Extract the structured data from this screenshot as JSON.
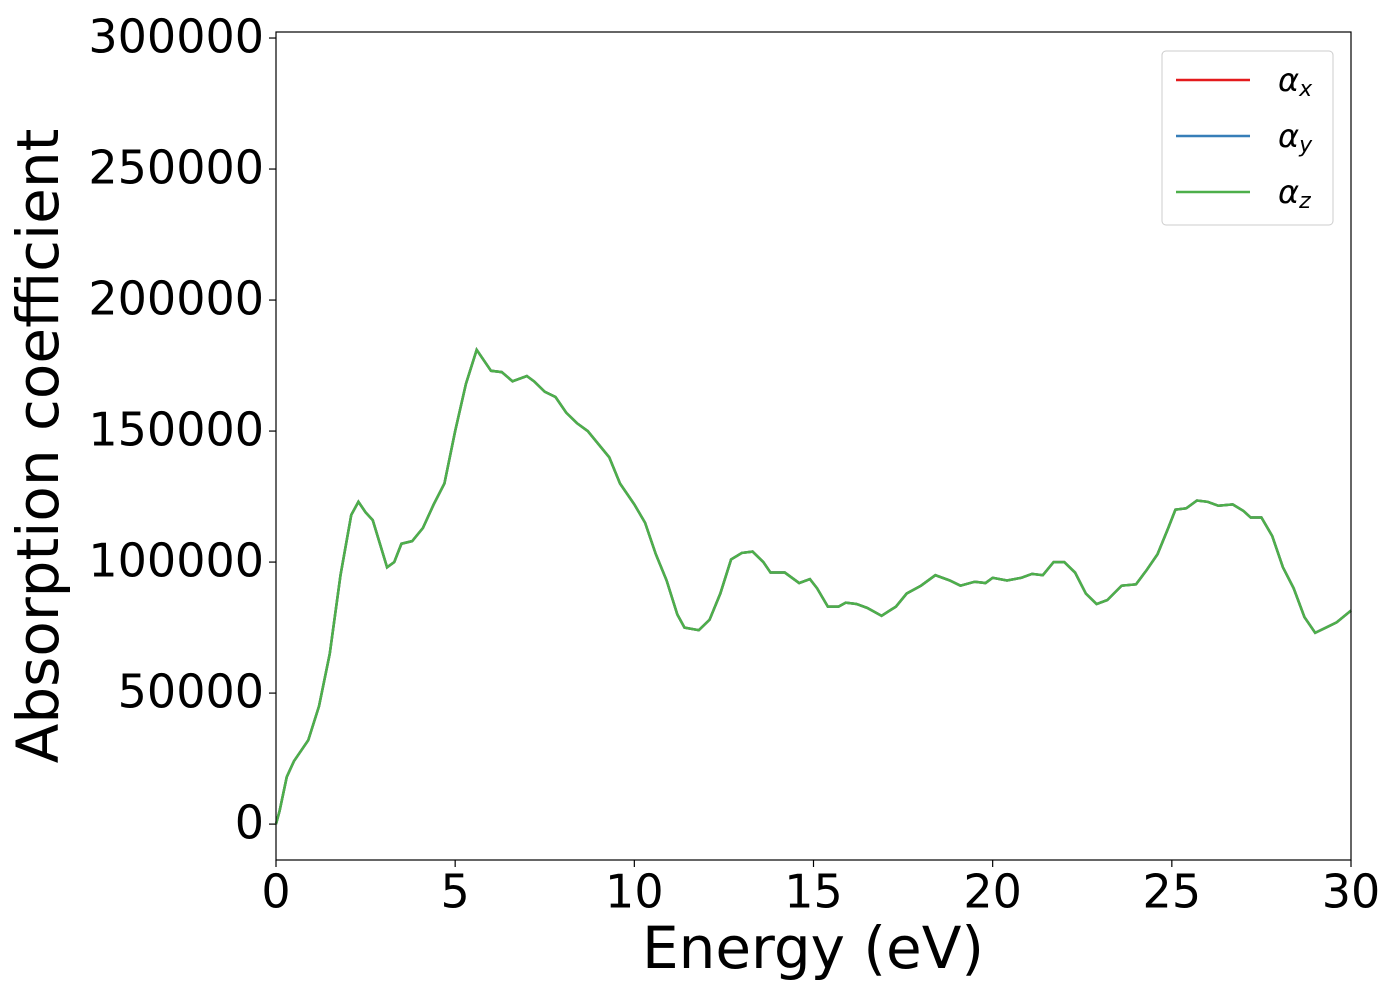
{
  "chart_data": {
    "type": "line",
    "x_label": "Energy (eV)",
    "y_label": "Absorption coefficient",
    "x": [
      0,
      0.1,
      0.3,
      0.5,
      0.9,
      1.2,
      1.5,
      1.8,
      2.1,
      2.3,
      2.5,
      2.7,
      2.9,
      3.1,
      3.3,
      3.5,
      3.8,
      4.1,
      4.4,
      4.7,
      5.0,
      5.3,
      5.6,
      5.8,
      6.0,
      6.3,
      6.6,
      7.0,
      7.2,
      7.5,
      7.8,
      8.1,
      8.4,
      8.7,
      9.0,
      9.3,
      9.6,
      10.0,
      10.3,
      10.6,
      10.9,
      11.2,
      11.4,
      11.8,
      12.1,
      12.4,
      12.7,
      13.0,
      13.3,
      13.6,
      13.8,
      14.2,
      14.6,
      14.9,
      15.1,
      15.4,
      15.7,
      15.9,
      16.2,
      16.5,
      16.9,
      17.3,
      17.6,
      18.0,
      18.4,
      18.8,
      19.1,
      19.5,
      19.8,
      20.0,
      20.4,
      20.8,
      21.1,
      21.4,
      21.7,
      22.0,
      22.3,
      22.6,
      22.9,
      23.2,
      23.6,
      24.0,
      24.3,
      24.6,
      24.9,
      25.1,
      25.4,
      25.7,
      26.0,
      26.3,
      26.7,
      27.0,
      27.2,
      27.5,
      27.8,
      28.1,
      28.4,
      28.7,
      29.0,
      29.3,
      29.6,
      30.0
    ],
    "series": [
      {
        "name": "αx",
        "color": "#e41a1c",
        "values": [
          0,
          5000,
          18000,
          24000,
          32000,
          45000,
          65000,
          95000,
          118000,
          123000,
          119000,
          116000,
          107000,
          98000,
          100000,
          107000,
          108000,
          113000,
          122000,
          130000,
          150000,
          168000,
          181000,
          177000,
          173000,
          172500,
          169000,
          171000,
          169000,
          165000,
          163000,
          157000,
          153000,
          150000,
          145000,
          140000,
          130000,
          122000,
          115000,
          103000,
          93000,
          80000,
          75000,
          74000,
          78000,
          88000,
          101000,
          103500,
          104000,
          100000,
          96000,
          96000,
          92000,
          93500,
          90000,
          83000,
          83000,
          84500,
          84000,
          82500,
          79500,
          83000,
          88000,
          91000,
          95000,
          93000,
          91000,
          92500,
          92000,
          94000,
          93000,
          94000,
          95500,
          95000,
          100000,
          100000,
          96000,
          88000,
          84000,
          85500,
          91000,
          91500,
          97000,
          103000,
          113000,
          120000,
          120500,
          123500,
          123000,
          121500,
          122000,
          119500,
          117000,
          117000,
          110000,
          98000,
          90000,
          79000,
          73000,
          75000,
          77000,
          81500
        ]
      },
      {
        "name": "αy",
        "color": "#377eb8",
        "values": [
          0,
          5000,
          18000,
          24000,
          32000,
          45000,
          65000,
          95000,
          118000,
          123000,
          119000,
          116000,
          107000,
          98000,
          100000,
          107000,
          108000,
          113000,
          122000,
          130000,
          150000,
          168000,
          181000,
          177000,
          173000,
          172500,
          169000,
          171000,
          169000,
          165000,
          163000,
          157000,
          153000,
          150000,
          145000,
          140000,
          130000,
          122000,
          115000,
          103000,
          93000,
          80000,
          75000,
          74000,
          78000,
          88000,
          101000,
          103500,
          104000,
          100000,
          96000,
          96000,
          92000,
          93500,
          90000,
          83000,
          83000,
          84500,
          84000,
          82500,
          79500,
          83000,
          88000,
          91000,
          95000,
          93000,
          91000,
          92500,
          92000,
          94000,
          93000,
          94000,
          95500,
          95000,
          100000,
          100000,
          96000,
          88000,
          84000,
          85500,
          91000,
          91500,
          97000,
          103000,
          113000,
          120000,
          120500,
          123500,
          123000,
          121500,
          122000,
          119500,
          117000,
          117000,
          110000,
          98000,
          90000,
          79000,
          73000,
          75000,
          77000,
          81500
        ]
      },
      {
        "name": "αz",
        "color": "#4daf4a",
        "values": [
          0,
          5000,
          18000,
          24000,
          32000,
          45000,
          65000,
          95000,
          118000,
          123000,
          119000,
          116000,
          107000,
          98000,
          100000,
          107000,
          108000,
          113000,
          122000,
          130000,
          150000,
          168000,
          181000,
          177000,
          173000,
          172500,
          169000,
          171000,
          169000,
          165000,
          163000,
          157000,
          153000,
          150000,
          145000,
          140000,
          130000,
          122000,
          115000,
          103000,
          93000,
          80000,
          75000,
          74000,
          78000,
          88000,
          101000,
          103500,
          104000,
          100000,
          96000,
          96000,
          92000,
          93500,
          90000,
          83000,
          83000,
          84500,
          84000,
          82500,
          79500,
          83000,
          88000,
          91000,
          95000,
          93000,
          91000,
          92500,
          92000,
          94000,
          93000,
          94000,
          95500,
          95000,
          100000,
          100000,
          96000,
          88000,
          84000,
          85500,
          91000,
          91500,
          97000,
          103000,
          113000,
          120000,
          120500,
          123500,
          123000,
          121500,
          122000,
          119500,
          117000,
          117000,
          110000,
          98000,
          90000,
          79000,
          73000,
          75000,
          77000,
          81500
        ]
      }
    ],
    "xlim": [
      0,
      30
    ],
    "xticks": [
      0,
      5,
      10,
      15,
      20,
      25,
      30
    ],
    "ylim": [
      -13700,
      302300
    ],
    "yticks": [
      0,
      50000,
      100000,
      150000,
      200000,
      250000,
      300000
    ],
    "legend": "upper right",
    "grid": false
  }
}
